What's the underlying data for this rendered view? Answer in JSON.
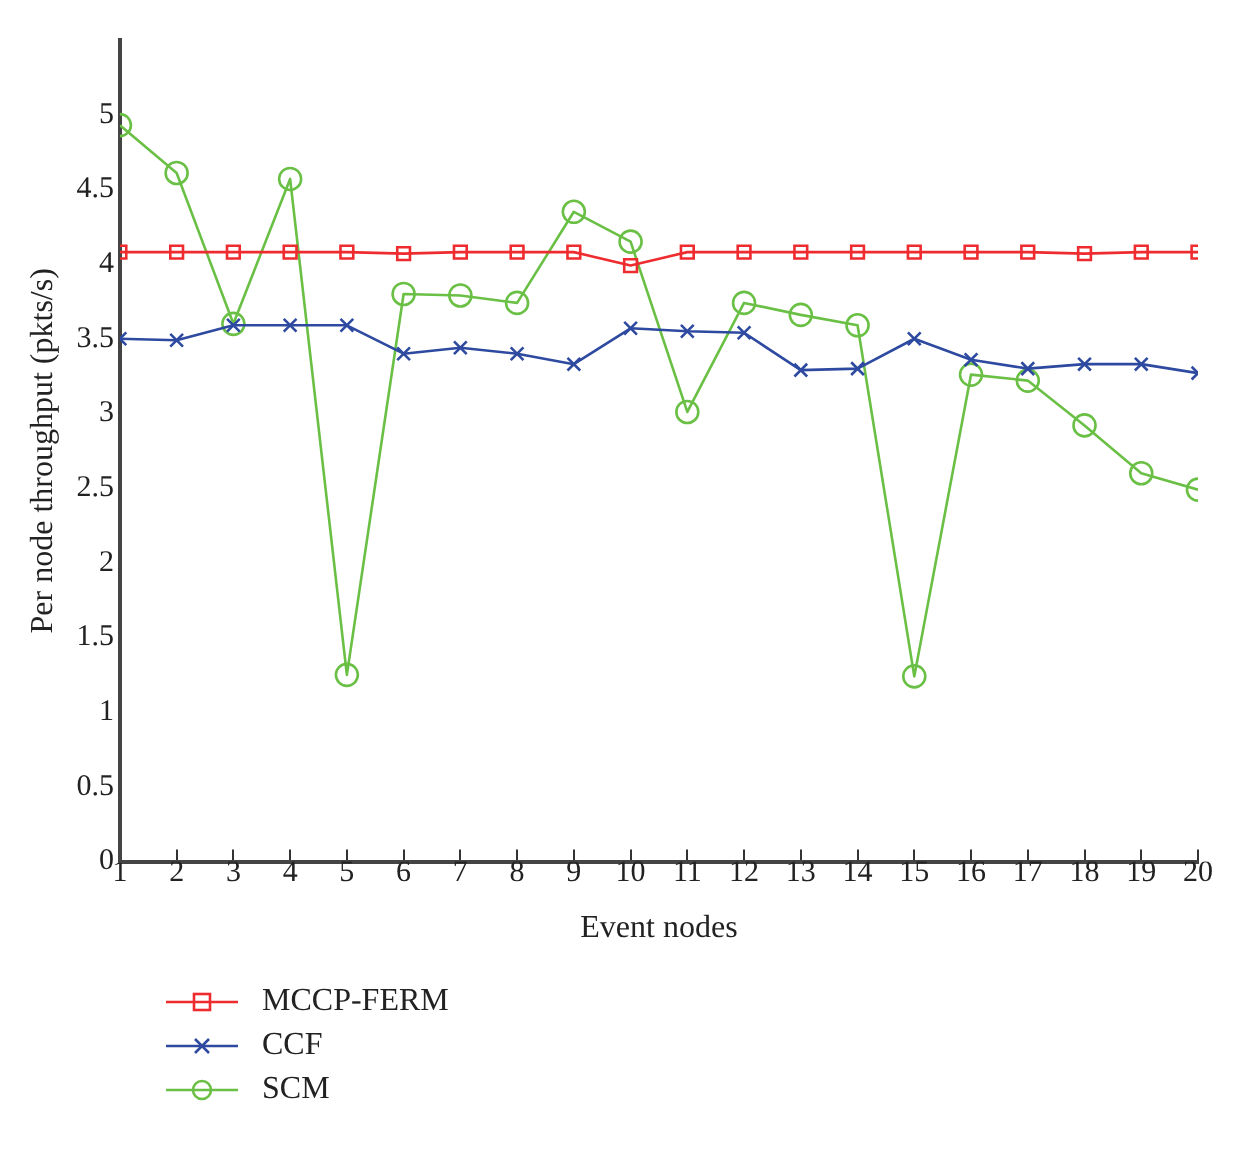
{
  "chart_data": {
    "type": "line",
    "xlabel": "Event nodes",
    "ylabel": "Per node throughput (pkts/s)",
    "x": [
      1,
      2,
      3,
      4,
      5,
      6,
      7,
      8,
      9,
      10,
      11,
      12,
      13,
      14,
      15,
      16,
      17,
      18,
      19,
      20
    ],
    "xlim": [
      1,
      20
    ],
    "xticks": [
      1,
      2,
      3,
      4,
      5,
      6,
      7,
      8,
      9,
      10,
      11,
      12,
      13,
      14,
      15,
      16,
      17,
      18,
      19,
      20
    ],
    "ylim": [
      0,
      5.5
    ],
    "yticks": [
      0,
      0.5,
      1,
      1.5,
      2,
      2.5,
      3,
      3.5,
      4,
      4.5,
      5
    ],
    "grid": false,
    "legend": "bottom left",
    "series": [
      {
        "name": "MCCP-FERM",
        "color": "#ee2b2f",
        "marker": "square",
        "values": [
          4.08,
          4.08,
          4.08,
          4.08,
          4.08,
          4.07,
          4.08,
          4.08,
          4.08,
          3.99,
          4.08,
          4.08,
          4.08,
          4.08,
          4.08,
          4.08,
          4.08,
          4.07,
          4.08,
          4.08
        ]
      },
      {
        "name": "CCF",
        "color": "#2e4aa0",
        "marker": "cross",
        "values": [
          3.5,
          3.49,
          3.59,
          3.59,
          3.59,
          3.4,
          3.44,
          3.4,
          3.33,
          3.57,
          3.55,
          3.54,
          3.29,
          3.3,
          3.5,
          3.36,
          3.3,
          3.33,
          3.33,
          3.27
        ]
      },
      {
        "name": "SCM",
        "color": "#6abf45",
        "marker": "circle",
        "values": [
          4.93,
          4.61,
          3.6,
          4.57,
          1.25,
          3.8,
          3.79,
          3.74,
          4.35,
          4.15,
          3.01,
          3.74,
          3.66,
          3.59,
          1.24,
          3.26,
          3.22,
          2.92,
          2.6,
          2.49
        ]
      }
    ]
  }
}
